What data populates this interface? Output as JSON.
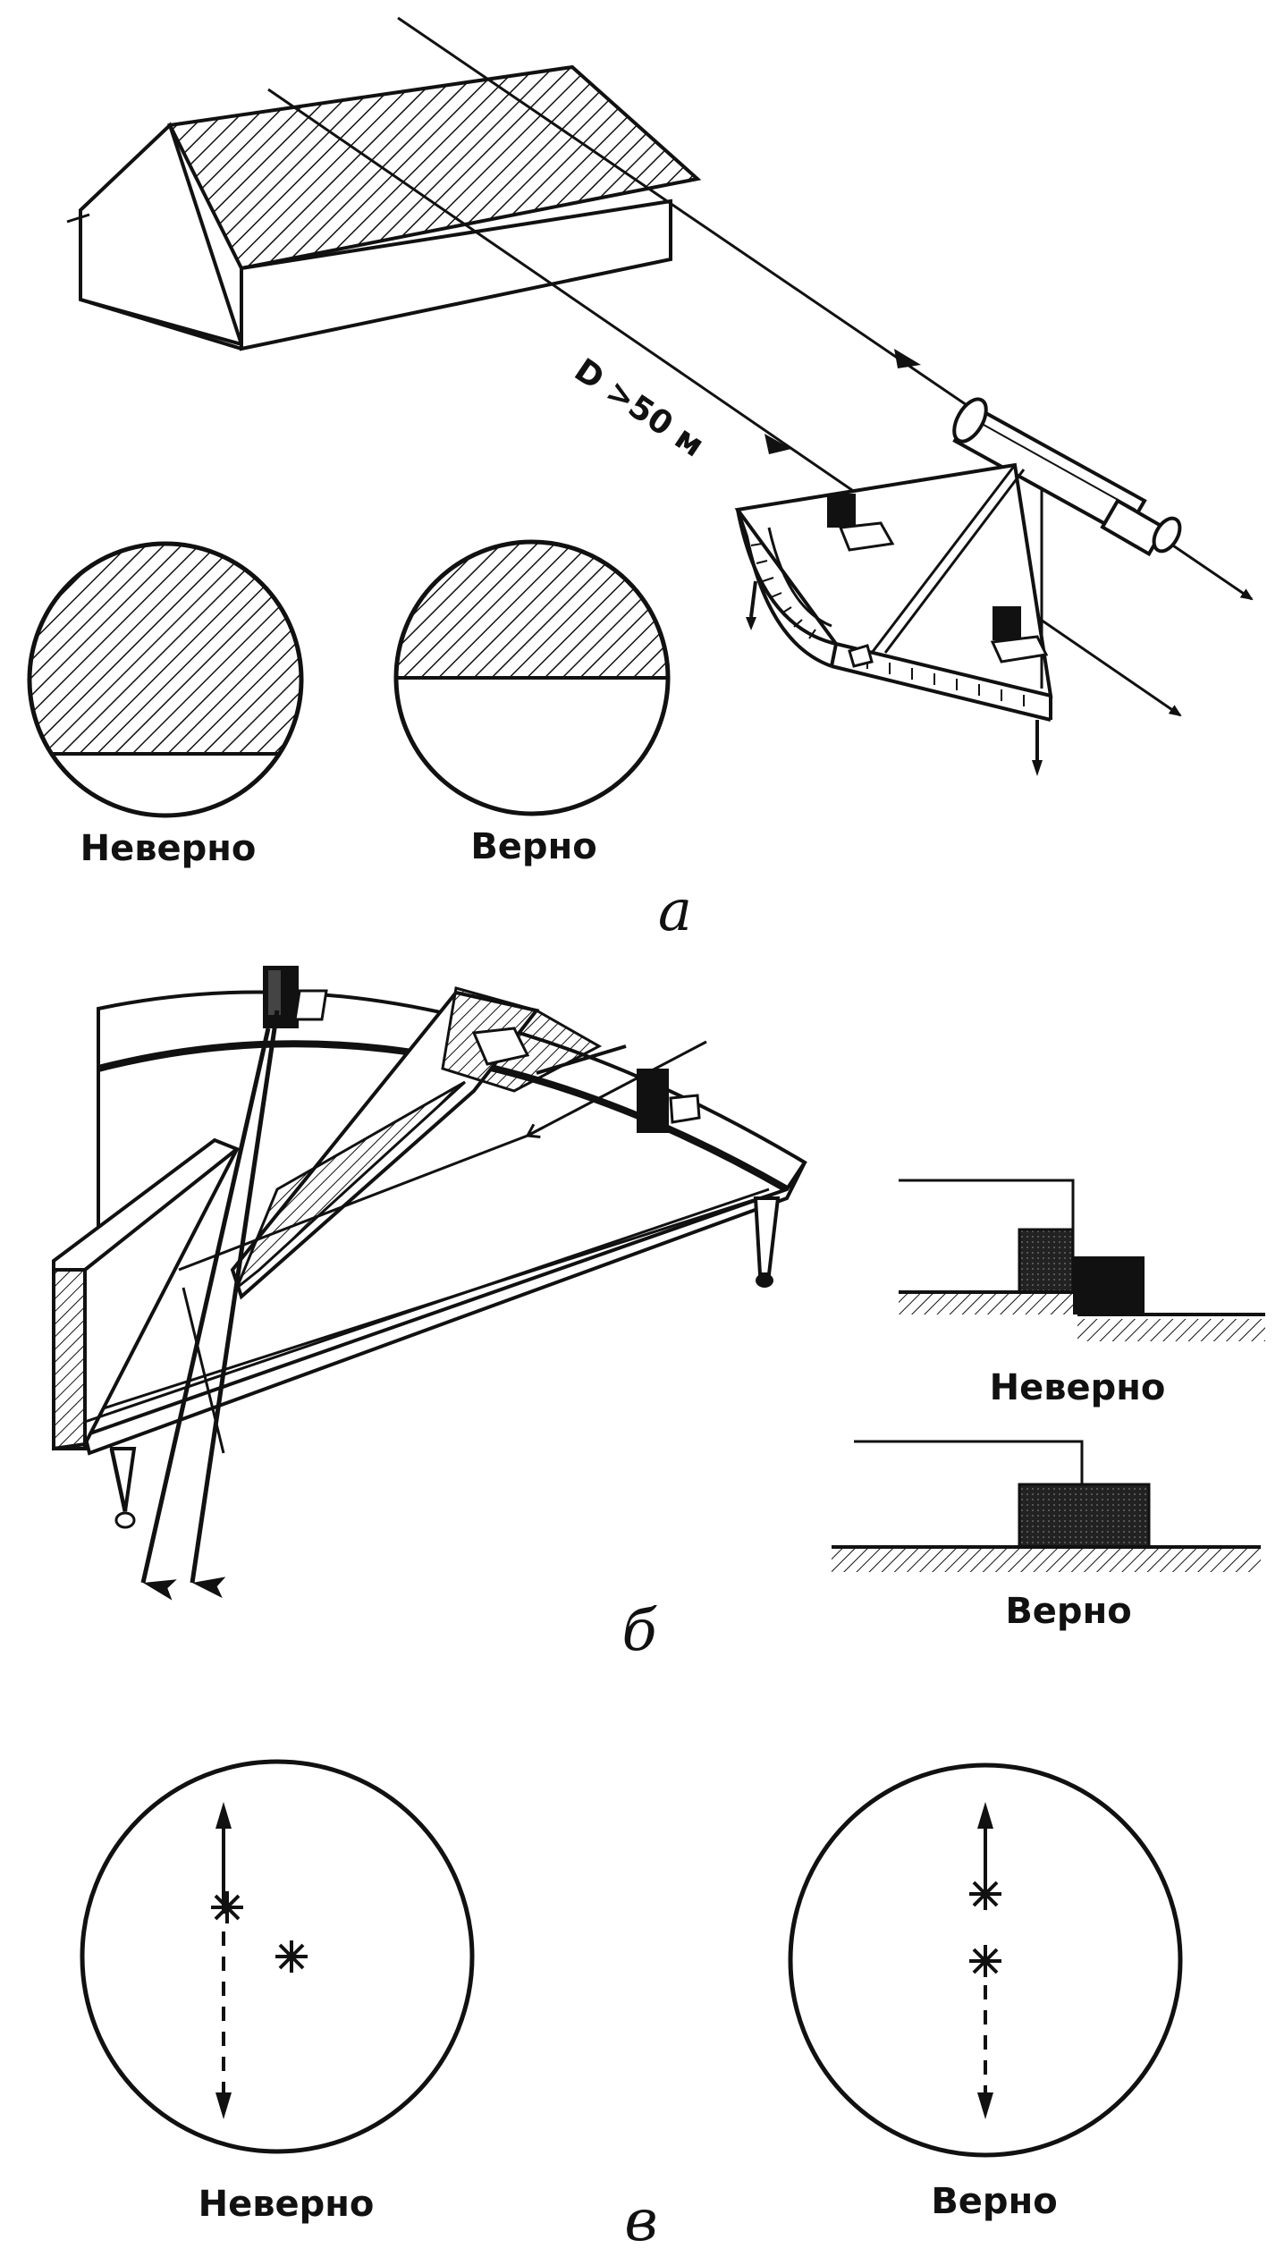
{
  "panel_a": {
    "letter": "а",
    "distance_label": "D >50 м",
    "wrong_label": "Неверно",
    "right_label": "Верно"
  },
  "panel_b": {
    "letter": "б",
    "wrong_label": "Неверно",
    "right_label": "Верно"
  },
  "panel_v": {
    "letter": "в",
    "wrong_label": "Неверно",
    "right_label": "Верно"
  },
  "colors": {
    "ink": "#111111",
    "paper": "#ffffff"
  }
}
